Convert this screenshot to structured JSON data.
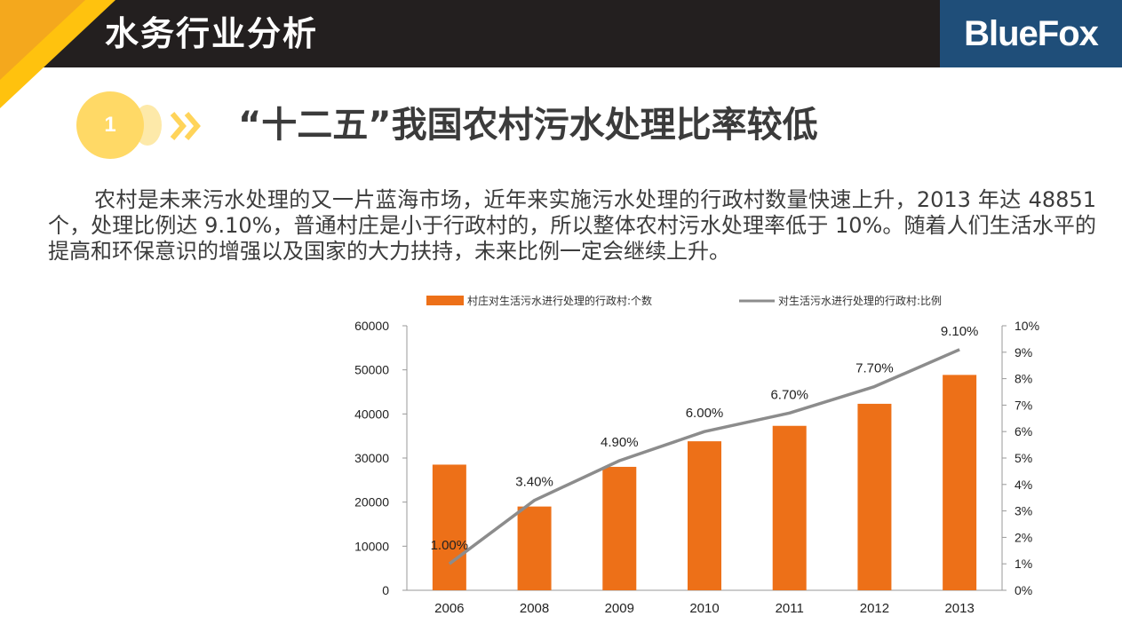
{
  "header": {
    "title": "水务行业分析",
    "logo_text": "BlueFox"
  },
  "section": {
    "number": "1",
    "title": "“十二五”我国农村污水处理比率较低"
  },
  "body_text": "农村是未来污水处理的又一片蓝海市场，近年来实施污水处理的行政村数量快速上升，2013 年达 48851 个，处理比例达 9.10%，普通村庄是小于行政村的，所以整体农村污水处理率低于 10%。随着人们生活水平的提高和环保意识的增强以及国家的大力扶持，未来比例一定会继续上升。",
  "colors": {
    "header_bg": "#231f1f",
    "accent_yellow": "#ffc20e",
    "logo_bg": "#1f4e79",
    "bar": "#ed7018",
    "line": "#8c8c8c"
  },
  "chart_data": {
    "type": "bar",
    "categories": [
      "2006",
      "2008",
      "2009",
      "2010",
      "2011",
      "2012",
      "2013"
    ],
    "series": [
      {
        "name": "村庄对生活污水进行处理的行政村:个数",
        "type": "bar",
        "axis": "left",
        "values": [
          28500,
          19000,
          28000,
          33800,
          37300,
          42300,
          48851
        ]
      },
      {
        "name": "对生活污水进行处理的行政村:比例",
        "type": "line",
        "axis": "right",
        "values": [
          1.0,
          3.4,
          4.9,
          6.0,
          6.7,
          7.7,
          9.1
        ],
        "labels": [
          "1.00%",
          "3.40%",
          "4.90%",
          "6.00%",
          "6.70%",
          "7.70%",
          "9.10%"
        ]
      }
    ],
    "y_left": {
      "min": 0,
      "max": 60000,
      "ticks": [
        "0",
        "10000",
        "20000",
        "30000",
        "40000",
        "50000",
        "60000"
      ]
    },
    "y_right": {
      "min": 0,
      "max": 10,
      "ticks": [
        "0%",
        "1%",
        "2%",
        "3%",
        "4%",
        "5%",
        "6%",
        "7%",
        "8%",
        "9%",
        "10%"
      ]
    },
    "legend_position": "top"
  }
}
